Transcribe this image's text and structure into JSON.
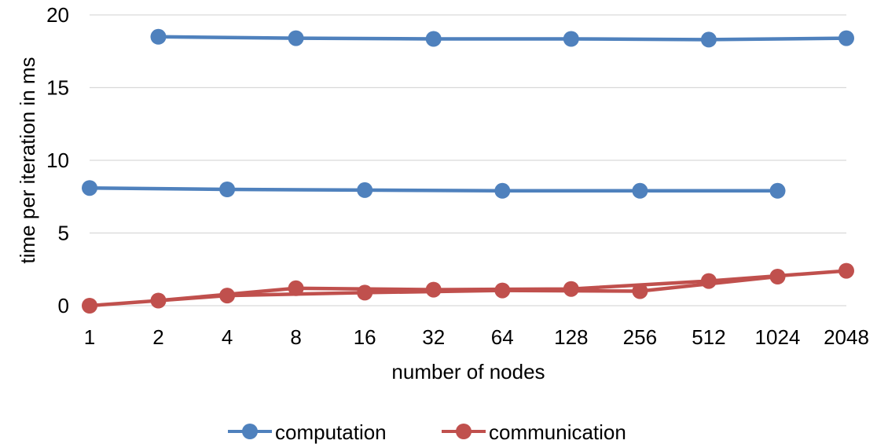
{
  "chart_data": {
    "type": "line",
    "title": "",
    "xlabel": "number of nodes",
    "ylabel": "time per iteration in ms",
    "categories": [
      "1",
      "2",
      "4",
      "8",
      "16",
      "32",
      "64",
      "128",
      "256",
      "512",
      "1024",
      "2048"
    ],
    "ylim": [
      0,
      20
    ],
    "yticks": [
      "0",
      "5",
      "10",
      "15",
      "20"
    ],
    "grid": true,
    "legend_position": "bottom",
    "legend": [
      "computation",
      "communication"
    ],
    "series": [
      {
        "name": "computation",
        "color": "#4f81bd",
        "lines": [
          [
            [
              1,
              8.1
            ],
            [
              4,
              8.0
            ],
            [
              16,
              7.95
            ],
            [
              64,
              7.9
            ],
            [
              256,
              7.9
            ],
            [
              1024,
              7.9
            ]
          ],
          [
            [
              2,
              18.5
            ],
            [
              8,
              18.4
            ],
            [
              32,
              18.35
            ],
            [
              128,
              18.35
            ],
            [
              512,
              18.3
            ],
            [
              2048,
              18.4
            ]
          ]
        ]
      },
      {
        "name": "communication",
        "color": "#c0504d",
        "lines": [
          [
            [
              1,
              0.0
            ],
            [
              4,
              0.7
            ],
            [
              16,
              0.9
            ],
            [
              64,
              1.05
            ],
            [
              256,
              1.0
            ],
            [
              1024,
              2.0
            ]
          ],
          [
            [
              2,
              0.35
            ],
            [
              8,
              1.2
            ],
            [
              32,
              1.1
            ],
            [
              128,
              1.15
            ],
            [
              512,
              1.7
            ],
            [
              2048,
              2.4
            ]
          ]
        ]
      }
    ]
  }
}
